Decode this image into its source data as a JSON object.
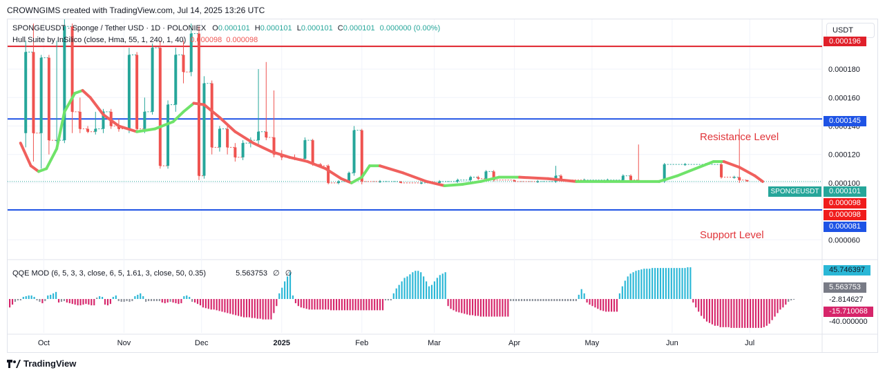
{
  "header": {
    "caption": "CROWNGIMS created with TradingView.com, Jul 14, 2025 13:26 UTC"
  },
  "legend": {
    "symbol_line": "SPONGEUSDT · Sponge / Tether USD · 1D · POLONIEX",
    "o_label": "O",
    "o_value": "0.000101",
    "h_label": "H",
    "h_value": "0.000101",
    "l_label": "L",
    "l_value": "0.000101",
    "c_label": "C",
    "c_value": "0.000101",
    "change": "0.000000 (0.00%)",
    "indicator_line": "Hull Suite by InSilico (close, Hma, 55, 1, 240, 1, 40)",
    "hull_value_1": "0.000098",
    "hull_value_2": "0.000098",
    "qqe_title": "QQE MOD (6, 5, 3, 3, close, 6, 5, 1.61, 3, close, 50, 0.35)",
    "qqe_value": "5.563753",
    "qqe_null_1": "∅",
    "qqe_null_2": "∅"
  },
  "currency_button": "USDT",
  "annotations": {
    "resistance": "Resistance Level",
    "support": "Support Level"
  },
  "colors": {
    "up": "#26a69a",
    "down": "#ef5350",
    "hull_green": "#6fe36a",
    "hull_red": "#f0605d",
    "resistance_line": "#1e53e5",
    "top_line": "#e0202a",
    "qqe_pos": "#2ab7d6",
    "qqe_neg": "#d6256a",
    "qqe_neutral": "#8a8f99"
  },
  "price_labels": {
    "top_line": "0.000196",
    "resistance": "0.000145",
    "current_symbol": "SPONGEUSDT",
    "current": "0.000101",
    "hull_1": "0.000098",
    "hull_2": "0.000098",
    "support": "0.000081"
  },
  "qqe_labels": {
    "max": "45.746397",
    "value": "5.563753",
    "tick": "-2.814627",
    "min": "-15.710068",
    "tick_low": "-40.000000"
  },
  "chart_data": {
    "type": "candlestick",
    "y_ticks": [
      "0.000180",
      "0.000160",
      "0.000140",
      "0.000120",
      "0.000100",
      "0.000060"
    ],
    "ylim": [
      4.8e-05,
      0.000215
    ],
    "x_ticks": [
      "Oct",
      "Nov",
      "Dec",
      "2025",
      "Feb",
      "Mar",
      "Apr",
      "May",
      "Jun",
      "Jul"
    ],
    "horizontal_levels": {
      "top": 0.000196,
      "resistance": 0.000145,
      "support": 8.1e-05
    },
    "candles": [
      [
        "2024-09-24",
        0.000135,
        0.0002,
        0.000125,
        0.000192
      ],
      [
        "2024-09-27",
        0.000192,
        0.000212,
        0.000115,
        0.000135
      ],
      [
        "2024-09-30",
        0.000135,
        0.00019,
        0.00011,
        0.000188
      ],
      [
        "2024-10-03",
        0.000188,
        0.00019,
        0.00012,
        0.00013
      ],
      [
        "2024-10-06",
        0.00013,
        0.0002,
        0.000125,
        0.00013
      ],
      [
        "2024-10-09",
        0.00013,
        0.000215,
        0.000128,
        0.00021
      ],
      [
        "2024-10-12",
        0.00021,
        0.000212,
        0.000135,
        0.00015
      ],
      [
        "2024-10-15",
        0.00015,
        0.00016,
        0.000135,
        0.000138
      ],
      [
        "2024-10-18",
        0.000138,
        0.00014,
        0.000135,
        0.000136
      ],
      [
        "2024-10-21",
        0.000136,
        0.00015,
        0.000134,
        0.000138
      ],
      [
        "2024-10-24",
        0.000138,
        0.000152,
        0.000135,
        0.00015
      ],
      [
        "2024-10-27",
        0.00015,
        0.000152,
        0.000138,
        0.00014
      ],
      [
        "2024-10-30",
        0.00014,
        0.000145,
        0.000136,
        0.000138
      ],
      [
        "2024-11-03",
        0.000138,
        0.000195,
        0.000135,
        0.00019
      ],
      [
        "2024-11-06",
        0.00019,
        0.000192,
        0.000136,
        0.000138
      ],
      [
        "2024-11-09",
        0.000138,
        0.00016,
        0.000135,
        0.00015
      ],
      [
        "2024-11-12",
        0.00015,
        0.000198,
        0.000148,
        0.000195
      ],
      [
        "2024-11-15",
        0.000195,
        0.0002,
        0.00011,
        0.000112
      ],
      [
        "2024-11-18",
        0.000112,
        0.000158,
        0.00011,
        0.000155
      ],
      [
        "2024-11-21",
        0.000155,
        0.000195,
        0.00015,
        0.00019
      ],
      [
        "2024-11-24",
        0.00019,
        0.0002,
        0.00017,
        0.000178
      ],
      [
        "2024-11-27",
        0.000178,
        0.000212,
        0.000175,
        0.000205
      ],
      [
        "2024-11-30",
        0.000205,
        0.00021,
        0.000102,
        0.000105
      ],
      [
        "2024-12-02",
        0.000105,
        0.000175,
        0.000103,
        0.00017
      ],
      [
        "2024-12-05",
        0.00017,
        0.000172,
        0.00012,
        0.000125
      ],
      [
        "2024-12-08",
        0.000125,
        0.00014,
        0.000122,
        0.000138
      ],
      [
        "2024-12-11",
        0.000138,
        0.000142,
        0.00012,
        0.000125
      ],
      [
        "2024-12-14",
        0.000125,
        0.000128,
        0.000115,
        0.000118
      ],
      [
        "2024-12-17",
        0.000118,
        0.00013,
        0.000116,
        0.000128
      ],
      [
        "2024-12-20",
        0.000128,
        0.000132,
        0.000125,
        0.00013
      ],
      [
        "2024-12-23",
        0.00013,
        0.00018,
        0.000126,
        0.000136
      ],
      [
        "2024-12-26",
        0.000136,
        0.000185,
        0.00013,
        0.000132
      ],
      [
        "2024-12-29",
        0.000132,
        0.000165,
        0.000118,
        0.00012
      ],
      [
        "2025-01-01",
        0.00012,
        0.000123,
        0.000116,
        0.000118
      ],
      [
        "2025-01-06",
        0.000118,
        0.00012,
        0.000116,
        0.000117
      ],
      [
        "2025-01-10",
        0.000117,
        0.000132,
        0.000115,
        0.00013
      ],
      [
        "2025-01-13",
        0.00013,
        0.000131,
        0.000112,
        0.000113
      ],
      [
        "2025-01-16",
        0.000113,
        0.000114,
        0.000111,
        0.000112
      ],
      [
        "2025-01-19",
        0.000112,
        0.000113,
        9.9e-05,
        0.0001
      ],
      [
        "2025-01-23",
        0.0001,
        0.000102,
        9.9e-05,
        0.000101
      ],
      [
        "2025-01-27",
        0.000101,
        0.000108,
        0.0001,
        0.000107
      ],
      [
        "2025-01-29",
        0.000107,
        0.00014,
        0.000105,
        0.000137
      ],
      [
        "2025-02-01",
        0.000137,
        0.000138,
        9.9e-05,
        0.000101
      ],
      [
        "2025-02-08",
        0.000101,
        0.000102,
        0.0001,
        0.000101
      ],
      [
        "2025-02-16",
        0.000101,
        0.000101,
        0.0001,
        0.0001
      ],
      [
        "2025-02-24",
        0.0001,
        0.000101,
        9.9e-05,
        0.0001
      ],
      [
        "2025-03-03",
        0.0001,
        0.000102,
        9.9e-05,
        0.000101
      ],
      [
        "2025-03-10",
        0.000101,
        0.000103,
        0.0001,
        0.000102
      ],
      [
        "2025-03-15",
        0.000102,
        0.000105,
        0.000101,
        0.000104
      ],
      [
        "2025-03-18",
        0.000104,
        0.000105,
        0.000102,
        0.000103
      ],
      [
        "2025-03-21",
        0.000103,
        0.000109,
        0.000102,
        0.000108
      ],
      [
        "2025-03-24",
        0.000108,
        0.000109,
        0.000101,
        0.000102
      ],
      [
        "2025-04-01",
        0.000102,
        0.000102,
        0.000101,
        0.000101
      ],
      [
        "2025-04-10",
        0.000101,
        0.000102,
        0.0001,
        0.000101
      ],
      [
        "2025-04-17",
        0.000101,
        0.000112,
        0.0001,
        0.000105
      ],
      [
        "2025-04-19",
        0.000105,
        0.000106,
        0.000101,
        0.000102
      ],
      [
        "2025-04-28",
        0.000102,
        0.000103,
        0.000101,
        0.000102
      ],
      [
        "2025-05-07",
        0.000102,
        0.000103,
        0.000101,
        0.000102
      ],
      [
        "2025-05-13",
        0.000102,
        0.000106,
        0.000101,
        0.000105
      ],
      [
        "2025-05-16",
        0.000105,
        0.000106,
        0.000101,
        0.000102
      ],
      [
        "2025-05-19",
        0.000102,
        0.000127,
        0.0001,
        0.000101
      ],
      [
        "2025-05-27",
        0.000101,
        0.000102,
        0.0001,
        0.000101
      ],
      [
        "2025-05-29",
        0.000101,
        0.000114,
        0.0001,
        0.000113
      ],
      [
        "2025-06-06",
        0.000113,
        0.000114,
        0.000112,
        0.000113
      ],
      [
        "2025-06-14",
        0.000113,
        0.000114,
        0.000112,
        0.000113
      ],
      [
        "2025-06-20",
        0.000113,
        0.000114,
        0.000103,
        0.000104
      ],
      [
        "2025-06-25",
        0.000104,
        0.000105,
        0.000103,
        0.000104
      ],
      [
        "2025-06-27",
        0.000104,
        0.000138,
        0.0001,
        0.000102
      ],
      [
        "2025-06-30",
        0.000102,
        0.000102,
        0.000101,
        0.000101
      ]
    ],
    "hull_suite": [
      [
        "2024-09-22",
        0.000128
      ],
      [
        "2024-09-26",
        0.000112
      ],
      [
        "2024-09-29",
        0.000108
      ],
      [
        "2024-10-02",
        0.00011
      ],
      [
        "2024-10-06",
        0.000124
      ],
      [
        "2024-10-09",
        0.00015
      ],
      [
        "2024-10-13",
        0.000163
      ],
      [
        "2024-10-16",
        0.000165
      ],
      [
        "2024-10-19",
        0.00016
      ],
      [
        "2024-10-24",
        0.000148
      ],
      [
        "2024-10-30",
        0.00014
      ],
      [
        "2024-11-06",
        0.000136
      ],
      [
        "2024-11-13",
        0.000138
      ],
      [
        "2024-11-20",
        0.000143
      ],
      [
        "2024-11-24",
        0.00015
      ],
      [
        "2024-11-28",
        0.000156
      ],
      [
        "2024-12-02",
        0.000155
      ],
      [
        "2024-12-08",
        0.000146
      ],
      [
        "2024-12-14",
        0.000136
      ],
      [
        "2024-12-21",
        0.000128
      ],
      [
        "2024-12-28",
        0.000122
      ],
      [
        "2025-01-04",
        0.000118
      ],
      [
        "2025-01-11",
        0.000115
      ],
      [
        "2025-01-18",
        0.00011
      ],
      [
        "2025-01-24",
        0.000103
      ],
      [
        "2025-01-28",
        0.0001
      ],
      [
        "2025-02-01",
        0.000104
      ],
      [
        "2025-02-04",
        0.000112
      ],
      [
        "2025-02-08",
        0.000112
      ],
      [
        "2025-02-17",
        0.000107
      ],
      [
        "2025-02-26",
        0.000101
      ],
      [
        "2025-03-05",
        9.8e-05
      ],
      [
        "2025-03-12",
        9.9e-05
      ],
      [
        "2025-03-19",
        0.000101
      ],
      [
        "2025-03-26",
        0.000104
      ],
      [
        "2025-04-03",
        0.000104
      ],
      [
        "2025-04-14",
        0.000103
      ],
      [
        "2025-04-25",
        0.000101
      ],
      [
        "2025-05-06",
        0.000101
      ],
      [
        "2025-05-16",
        0.000101
      ],
      [
        "2025-05-27",
        0.000101
      ],
      [
        "2025-06-03",
        0.000105
      ],
      [
        "2025-06-10",
        0.00011
      ],
      [
        "2025-06-17",
        0.000115
      ],
      [
        "2025-06-21",
        0.000115
      ],
      [
        "2025-06-27",
        0.000111
      ],
      [
        "2025-07-03",
        0.000105
      ],
      [
        "2025-07-06",
        0.000101
      ]
    ],
    "qqe_histogram": [
      -12,
      -8,
      -4,
      -2,
      -2,
      3,
      4,
      5,
      5,
      3,
      -2,
      -4,
      -6,
      -3,
      5,
      6,
      8,
      10,
      -5,
      -4,
      -3,
      -5,
      -6,
      -7,
      -8,
      -9,
      -9,
      -8,
      -7,
      -8,
      -9,
      -9,
      2,
      4,
      3,
      -8,
      -9,
      -7,
      3,
      5,
      -3,
      -4,
      -4,
      -3,
      -4,
      -3,
      4,
      6,
      8,
      4,
      -4,
      -3,
      -3,
      -3,
      -3,
      -3,
      -5,
      -6,
      -5,
      -4,
      -5,
      -6,
      -7,
      -6,
      4,
      5,
      3,
      -4,
      -5,
      -7,
      -9,
      -12,
      -13,
      -14,
      -15,
      -15,
      -16,
      -17,
      -18,
      -19,
      -20,
      -21,
      -22,
      -23,
      -24,
      -25,
      -26,
      -26,
      -26,
      -27,
      -27,
      -28,
      -28,
      -29,
      -29,
      -29,
      -29,
      -20,
      -10,
      8,
      16,
      25,
      32,
      38,
      5,
      -6,
      -10,
      -12,
      -13,
      -14,
      -15,
      -15,
      -15,
      -15,
      -15,
      -15,
      -15,
      -15,
      -16,
      -16,
      -16,
      -16,
      -16,
      -16,
      -16,
      -16,
      -16,
      -16,
      -16,
      -16,
      -16,
      -16,
      -16,
      -16,
      -16,
      -16,
      -16,
      -16,
      -2,
      -2,
      -2,
      8,
      15,
      20,
      25,
      30,
      32,
      35,
      38,
      40,
      40,
      38,
      32,
      25,
      18,
      20,
      25,
      30,
      34,
      36,
      38,
      -10,
      -14,
      -16,
      -18,
      -19,
      -20,
      -21,
      -22,
      -23,
      -23,
      -24,
      -24,
      -25,
      -25,
      -25,
      -25,
      -25,
      -25,
      -25,
      -25,
      -25,
      -25,
      -25,
      -3,
      -3,
      -3,
      -3,
      -3,
      -3,
      -3,
      -3,
      -3,
      -3,
      -3,
      -3,
      -3,
      -3,
      -3,
      -3,
      -3,
      -3,
      -3,
      -3,
      -3,
      -3,
      -3,
      -3,
      -3,
      6,
      14,
      8,
      -5,
      -8,
      -10,
      -12,
      -14,
      -16,
      -17,
      -18,
      -18,
      -18,
      -18,
      -18,
      8,
      18,
      26,
      32,
      36,
      38,
      40,
      41,
      42,
      43,
      43,
      43,
      44,
      44,
      44,
      44,
      44,
      44,
      44,
      44,
      44,
      44,
      44,
      44,
      44,
      45,
      45,
      -5,
      -12,
      -18,
      -24,
      -28,
      -32,
      -34,
      -36,
      -38,
      -38,
      -40,
      -40,
      -40,
      -40,
      -41,
      -41,
      -41,
      -41,
      -41,
      -41,
      -41,
      -41,
      -41,
      -41,
      -41,
      -41,
      -40,
      -38,
      -35,
      -30,
      -25,
      -20,
      -15,
      -12,
      -8,
      -4,
      -2,
      -1
    ],
    "qqe_ylim": [
      -48,
      50
    ]
  }
}
